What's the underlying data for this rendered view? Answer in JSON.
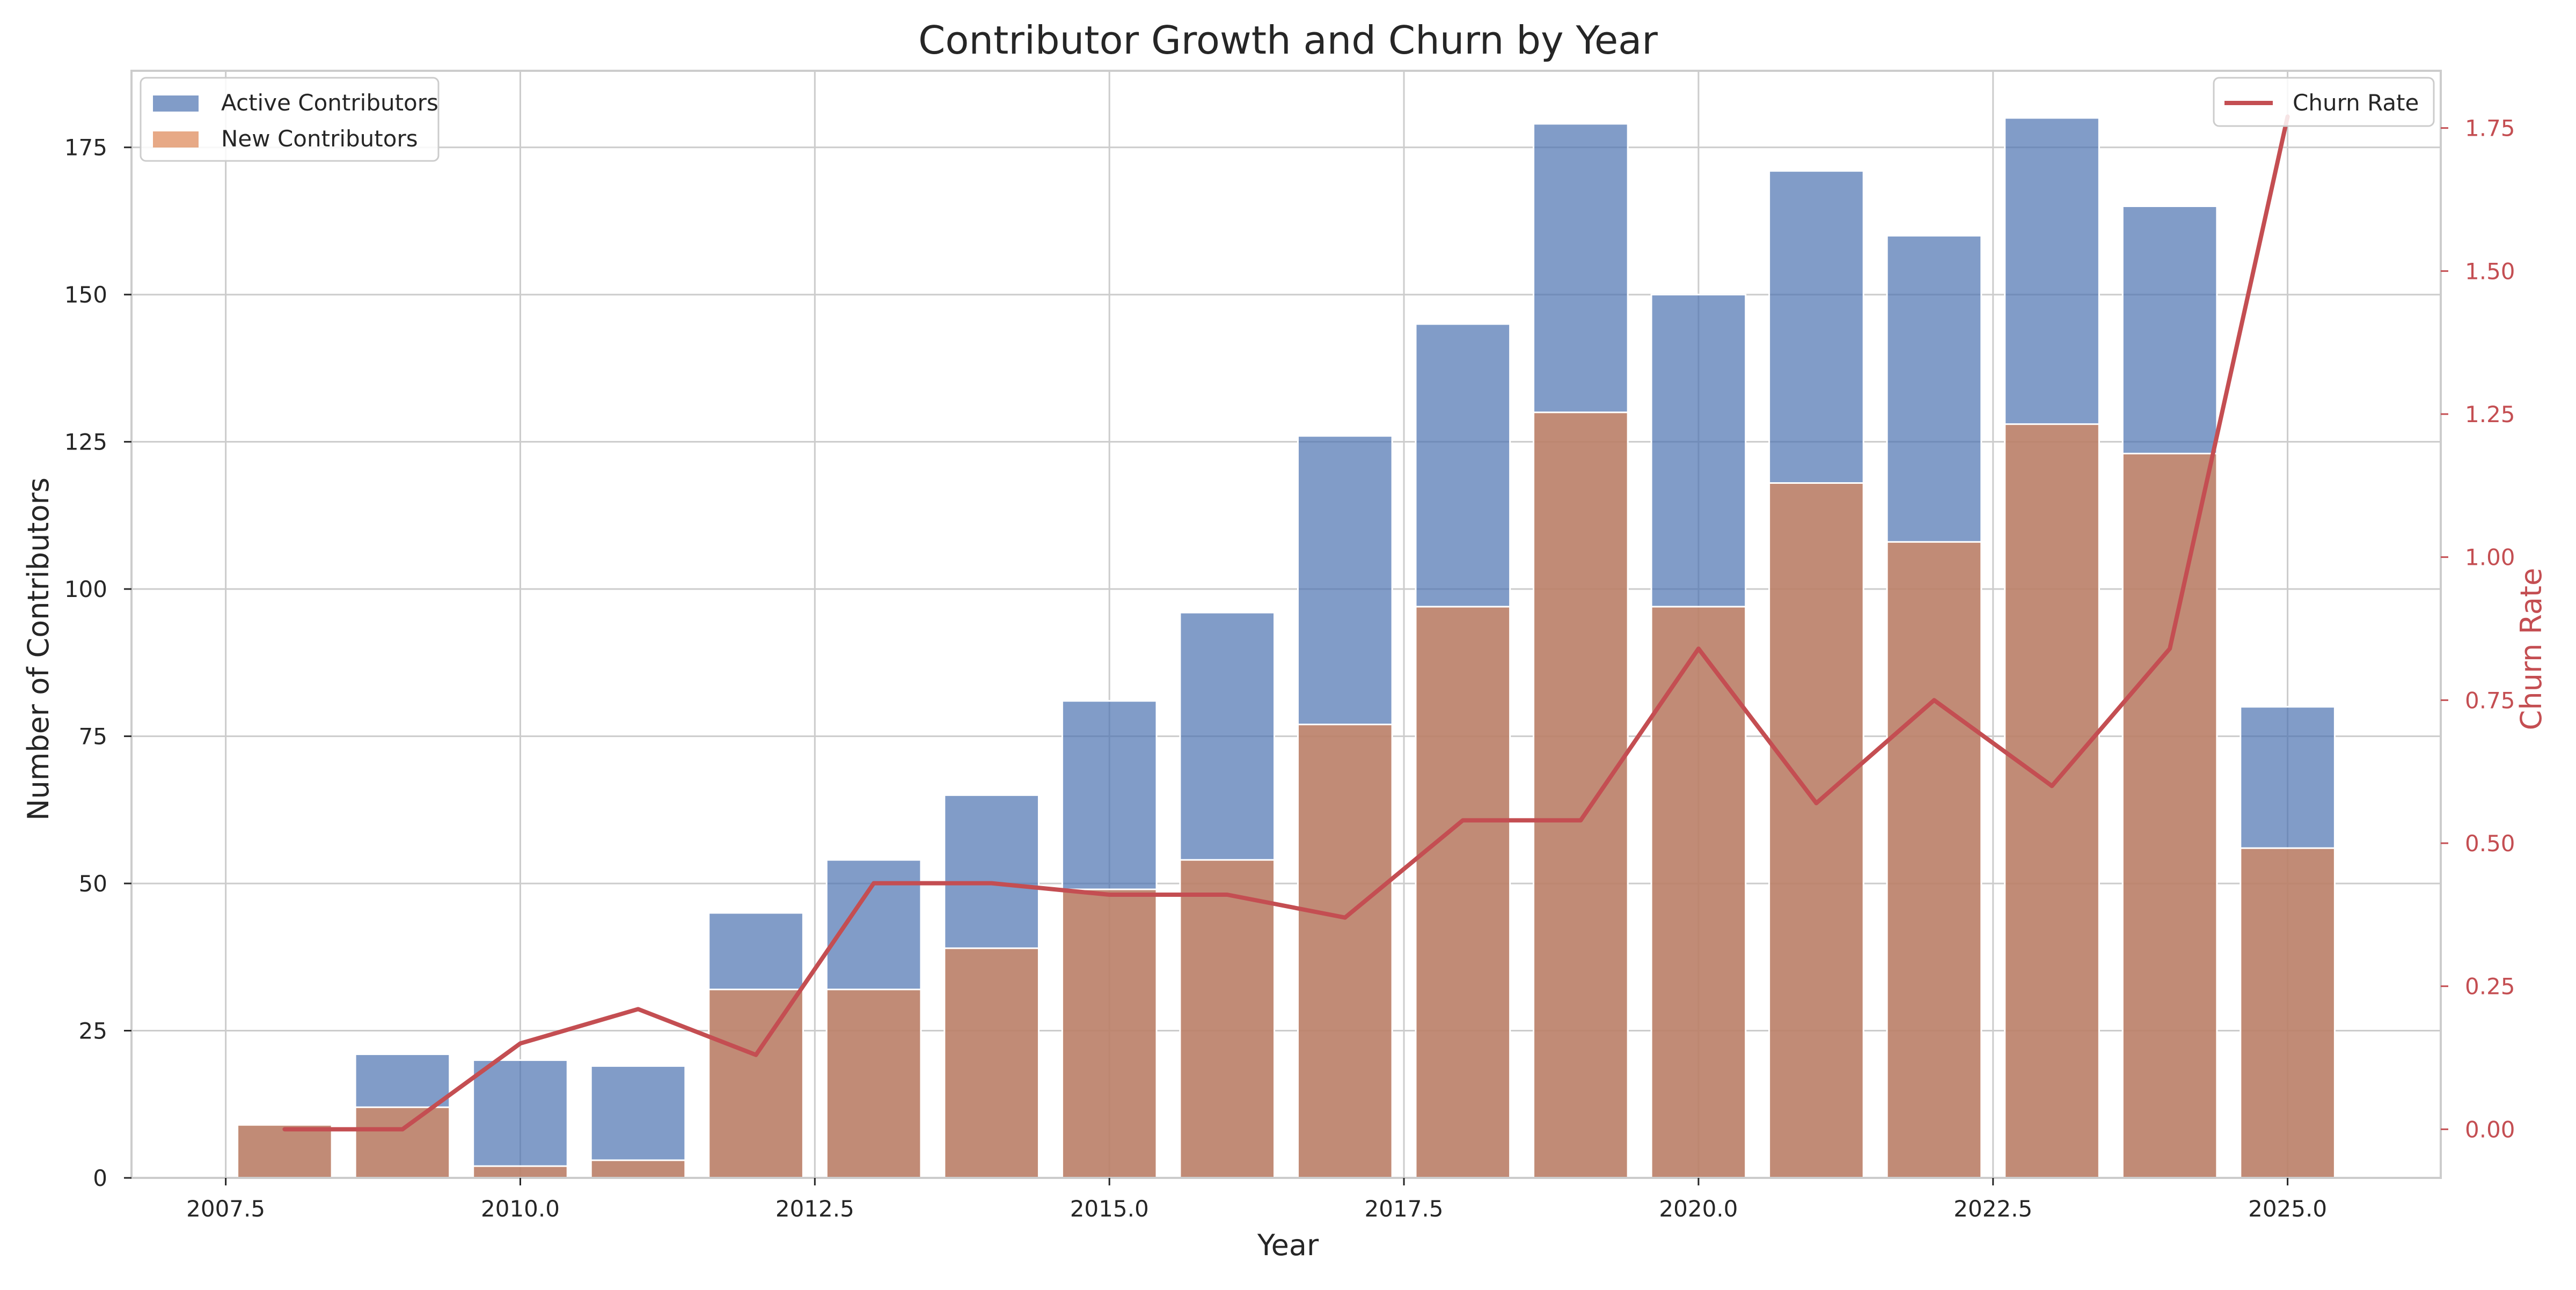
{
  "chart_data": {
    "type": "bar",
    "title": "Contributor Growth and Churn by Year",
    "xlabel": "Year",
    "ylabel": "Number of Contributors",
    "y2label": "Churn Rate",
    "xlim": [
      2006.7,
      2026.3
    ],
    "ylim": [
      0,
      188
    ],
    "y2lim": [
      -0.085,
      1.85
    ],
    "xticks": [
      2007.5,
      2010.0,
      2012.5,
      2015.0,
      2017.5,
      2020.0,
      2022.5,
      2025.0
    ],
    "xtick_labels": [
      "2007.5",
      "2010.0",
      "2012.5",
      "2015.0",
      "2017.5",
      "2020.0",
      "2022.5",
      "2025.0"
    ],
    "yticks": [
      0,
      25,
      50,
      75,
      100,
      125,
      150,
      175
    ],
    "ytick_labels": [
      "0",
      "25",
      "50",
      "75",
      "100",
      "125",
      "150",
      "175"
    ],
    "y2ticks": [
      0.0,
      0.25,
      0.5,
      0.75,
      1.0,
      1.25,
      1.5,
      1.75
    ],
    "y2tick_labels": [
      "0.00",
      "0.25",
      "0.50",
      "0.75",
      "1.00",
      "1.25",
      "1.50",
      "1.75"
    ],
    "grid": true,
    "x": [
      2008,
      2009,
      2010,
      2011,
      2012,
      2013,
      2014,
      2015,
      2016,
      2017,
      2018,
      2019,
      2020,
      2021,
      2022,
      2023,
      2024,
      2025
    ],
    "series": [
      {
        "name": "Active Contributors",
        "type": "bar",
        "axis": "left",
        "color": "#4c72b0",
        "values": [
          9,
          21,
          20,
          19,
          45,
          54,
          65,
          81,
          96,
          126,
          145,
          179,
          150,
          171,
          160,
          180,
          165,
          80
        ]
      },
      {
        "name": "New Contributors",
        "type": "bar",
        "axis": "left",
        "color": "#dd8452",
        "values": [
          9,
          12,
          2,
          3,
          32,
          32,
          39,
          49,
          54,
          77,
          97,
          130,
          97,
          118,
          108,
          128,
          123,
          56
        ]
      },
      {
        "name": "Churn Rate",
        "type": "line",
        "axis": "right",
        "color": "#c44e52",
        "values": [
          0.0,
          0.0,
          0.15,
          0.21,
          0.13,
          0.43,
          0.43,
          0.41,
          0.41,
          0.37,
          0.54,
          0.54,
          0.84,
          0.57,
          0.75,
          0.6,
          0.84,
          1.77
        ]
      }
    ],
    "legend_left_position": "upper-left",
    "legend_right_position": "upper-right"
  }
}
